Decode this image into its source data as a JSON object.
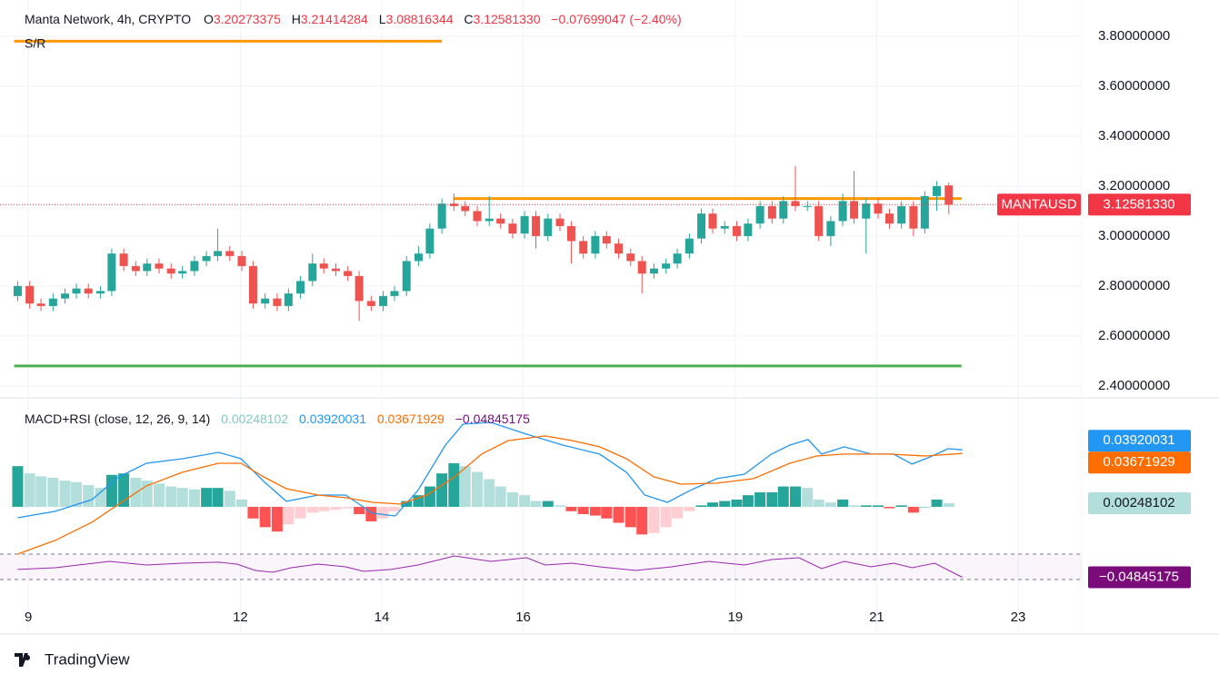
{
  "chart_data": [
    {
      "type": "candlestick",
      "title": "Manta Network, 4h, CRYPTO",
      "ohlc": [
        {
          "key": "O",
          "value": "3.20273375"
        },
        {
          "key": "H",
          "value": "3.21414284"
        },
        {
          "key": "L",
          "value": "3.08816344"
        },
        {
          "key": "C",
          "value": "3.12581330"
        }
      ],
      "change": "−0.07699047 (−2.40%)",
      "symbol": "MANTAUSD",
      "last_label": "3.12581330",
      "sr_label": "S/R",
      "x": [
        8.85,
        9.02,
        9.18,
        9.35,
        9.52,
        9.68,
        9.85,
        10.02,
        10.18,
        10.35,
        10.52,
        10.68,
        10.85,
        11.02,
        11.18,
        11.35,
        11.52,
        11.68,
        11.85,
        12.02,
        12.18,
        12.35,
        12.52,
        12.68,
        12.85,
        13.02,
        13.18,
        13.35,
        13.52,
        13.68,
        13.85,
        14.02,
        14.18,
        14.35,
        14.52,
        14.68,
        14.85,
        15.02,
        15.18,
        15.35,
        15.52,
        15.68,
        15.85,
        16.02,
        16.18,
        16.35,
        16.52,
        16.68,
        16.85,
        17.02,
        17.18,
        17.35,
        17.52,
        17.68,
        17.85,
        18.02,
        18.18,
        18.35,
        18.52,
        18.68,
        18.85,
        19.02,
        19.18,
        19.35,
        19.52,
        19.68,
        19.85,
        20.02,
        20.18,
        20.35,
        20.52,
        20.68,
        20.85,
        21.02,
        21.18,
        21.35,
        21.52,
        21.68,
        21.85,
        22.02
      ],
      "open": [
        2.76,
        2.8,
        2.73,
        2.72,
        2.75,
        2.77,
        2.79,
        2.77,
        2.78,
        2.93,
        2.88,
        2.86,
        2.89,
        2.87,
        2.85,
        2.86,
        2.9,
        2.92,
        2.94,
        2.92,
        2.88,
        2.73,
        2.75,
        2.72,
        2.77,
        2.82,
        2.89,
        2.87,
        2.86,
        2.84,
        2.74,
        2.72,
        2.76,
        2.78,
        2.9,
        2.93,
        3.03,
        3.13,
        3.12,
        3.1,
        3.06,
        3.07,
        3.05,
        3.01,
        3.08,
        3.0,
        3.07,
        3.04,
        2.98,
        2.93,
        3.0,
        2.97,
        2.93,
        2.9,
        2.85,
        2.87,
        2.89,
        2.93,
        2.99,
        3.09,
        3.03,
        3.04,
        3.0,
        3.05,
        3.12,
        3.07,
        3.14,
        3.12,
        3.12,
        3.0,
        3.06,
        3.14,
        3.07,
        3.13,
        3.09,
        3.05,
        3.12,
        3.03,
        3.16,
        3.20273375
      ],
      "high": [
        2.82,
        2.82,
        2.75,
        2.77,
        2.79,
        2.81,
        2.81,
        2.8,
        2.95,
        2.95,
        2.9,
        2.91,
        2.91,
        2.89,
        2.88,
        2.92,
        2.94,
        3.03,
        2.96,
        2.94,
        2.9,
        2.77,
        2.77,
        2.79,
        2.84,
        2.93,
        2.91,
        2.89,
        2.88,
        2.86,
        2.76,
        2.78,
        2.8,
        2.92,
        2.96,
        3.05,
        3.15,
        3.17,
        3.14,
        3.12,
        3.16,
        3.09,
        3.07,
        3.1,
        3.1,
        3.09,
        3.09,
        3.06,
        3.0,
        3.02,
        3.02,
        2.99,
        2.95,
        2.92,
        2.89,
        2.91,
        2.95,
        3.01,
        3.11,
        3.11,
        3.06,
        3.06,
        3.07,
        3.14,
        3.14,
        3.16,
        3.28,
        3.14,
        3.14,
        3.08,
        3.17,
        3.26,
        3.15,
        3.15,
        3.11,
        3.14,
        3.14,
        3.18,
        3.22,
        3.21414284
      ],
      "low": [
        2.74,
        2.71,
        2.7,
        2.7,
        2.73,
        2.75,
        2.75,
        2.75,
        2.76,
        2.86,
        2.84,
        2.84,
        2.85,
        2.83,
        2.83,
        2.84,
        2.88,
        2.9,
        2.9,
        2.86,
        2.71,
        2.71,
        2.7,
        2.7,
        2.75,
        2.8,
        2.85,
        2.84,
        2.82,
        2.66,
        2.7,
        2.7,
        2.74,
        2.76,
        2.88,
        2.91,
        3.01,
        3.1,
        3.08,
        3.04,
        3.04,
        3.03,
        2.99,
        2.99,
        2.95,
        2.98,
        3.02,
        2.89,
        2.91,
        2.91,
        2.95,
        2.91,
        2.88,
        2.77,
        2.83,
        2.85,
        2.87,
        2.91,
        2.97,
        3.01,
        3.01,
        2.98,
        2.98,
        3.03,
        3.05,
        3.05,
        3.1,
        3.1,
        2.98,
        2.96,
        3.04,
        3.05,
        2.93,
        3.07,
        3.03,
        3.03,
        3.0,
        3.01,
        3.1,
        3.08816344
      ],
      "close": [
        2.8,
        2.73,
        2.72,
        2.75,
        2.77,
        2.79,
        2.77,
        2.78,
        2.93,
        2.88,
        2.86,
        2.89,
        2.87,
        2.85,
        2.86,
        2.9,
        2.92,
        2.94,
        2.92,
        2.88,
        2.73,
        2.75,
        2.72,
        2.77,
        2.82,
        2.89,
        2.87,
        2.86,
        2.84,
        2.74,
        2.72,
        2.76,
        2.78,
        2.9,
        2.93,
        3.03,
        3.13,
        3.12,
        3.1,
        3.06,
        3.07,
        3.05,
        3.01,
        3.08,
        3.0,
        3.07,
        3.04,
        2.98,
        2.93,
        3.0,
        2.97,
        2.93,
        2.9,
        2.85,
        2.87,
        2.89,
        2.93,
        2.99,
        3.09,
        3.03,
        3.04,
        3.0,
        3.05,
        3.12,
        3.07,
        3.14,
        3.12,
        3.12,
        3.0,
        3.06,
        3.14,
        3.07,
        3.13,
        3.09,
        3.05,
        3.12,
        3.03,
        3.16,
        3.2,
        3.1258133
      ],
      "up_color": "#26a69a",
      "down_color": "#ef5350",
      "last_color": "#f23645",
      "xlim": [
        8.6,
        23.9
      ],
      "xticks": [
        9,
        12,
        14,
        16,
        19,
        21,
        23
      ],
      "ylim": [
        2.356,
        3.945
      ],
      "yticks": [
        {
          "value": 2.4,
          "label": "2.40000000"
        },
        {
          "value": 2.6,
          "label": "2.60000000"
        },
        {
          "value": 2.8,
          "label": "2.80000000"
        },
        {
          "value": 3.0,
          "label": "3.00000000"
        },
        {
          "value": 3.2,
          "label": "3.20000000"
        },
        {
          "value": 3.4,
          "label": "3.40000000"
        },
        {
          "value": 3.6,
          "label": "3.60000000"
        },
        {
          "value": 3.8,
          "label": "3.80000000"
        }
      ],
      "grid": true,
      "levels": [
        {
          "value": 3.78,
          "start": 8.8,
          "end": 14.85,
          "color": "#ff9800"
        },
        {
          "value": 3.15,
          "start": 15.02,
          "end": 22.2,
          "color": "#ff9800"
        },
        {
          "value": 2.48,
          "start": 8.8,
          "end": 22.2,
          "color": "#4caf50"
        }
      ]
    },
    {
      "type": "macd",
      "title": "MACD+RSI (close, 12, 26, 9, 14)",
      "ylim": [
        -0.0294,
        0.0731
      ],
      "histogram": {
        "values": [
          0.028,
          0.023,
          0.021,
          0.02,
          0.018,
          0.017,
          0.015,
          0.013,
          0.022,
          0.023,
          0.02,
          0.018,
          0.016,
          0.014,
          0.013,
          0.012,
          0.013,
          0.013,
          0.011,
          0.005,
          -0.008,
          -0.014,
          -0.017,
          -0.012,
          -0.008,
          -0.004,
          -0.003,
          -0.002,
          -0.001,
          -0.005,
          -0.01,
          -0.008,
          -0.003,
          0.004,
          0.008,
          0.014,
          0.023,
          0.03,
          0.028,
          0.024,
          0.019,
          0.014,
          0.01,
          0.008,
          0.004,
          0.004,
          0.001,
          -0.003,
          -0.005,
          -0.006,
          -0.008,
          -0.011,
          -0.014,
          -0.019,
          -0.018,
          -0.014,
          -0.008,
          -0.003,
          0.001,
          0.003,
          0.004,
          0.005,
          0.008,
          0.01,
          0.01,
          0.014,
          0.014,
          0.013,
          0.005,
          0.003,
          0.005,
          0.001,
          0.001,
          0.001,
          -0.001,
          0.001,
          -0.004,
          0.0,
          0.005,
          0.00248102
        ],
        "value_label": "0.00248102",
        "colors": {
          "up_strong": "#26a69a",
          "up_weak": "#b2dfdb",
          "down_strong": "#ff5252",
          "down_weak": "#ffcdd2"
        }
      },
      "series": [
        {
          "color": "#2196f3",
          "value_label": "0.03920031",
          "x": [
            8.85,
            9.38,
            9.9,
            10.28,
            10.67,
            11.18,
            11.69,
            12.01,
            12.33,
            12.65,
            13.1,
            13.49,
            13.87,
            14.19,
            14.51,
            14.9,
            15.15,
            15.54,
            16.05,
            16.56,
            17.08,
            17.46,
            17.72,
            18.04,
            18.36,
            18.74,
            19.13,
            19.51,
            19.77,
            20.03,
            20.22,
            20.54,
            20.92,
            21.24,
            21.5,
            21.76,
            22.01,
            22.21
          ],
          "values": [
            -0.0075,
            -0.0031,
            0.005,
            0.0206,
            0.03,
            0.0331,
            0.0375,
            0.0331,
            0.0175,
            0.0038,
            0.0081,
            0.0081,
            -0.0044,
            -0.0063,
            0.0113,
            0.0425,
            0.0569,
            0.0581,
            0.05,
            0.0425,
            0.0363,
            0.0238,
            0.0081,
            0.0031,
            0.0113,
            0.0194,
            0.0225,
            0.0363,
            0.0425,
            0.0463,
            0.0363,
            0.0413,
            0.0363,
            0.0363,
            0.0294,
            0.0344,
            0.04,
            0.03920031
          ]
        },
        {
          "color": "#ff6d00",
          "value_label": "0.03671929",
          "x": [
            8.85,
            9.38,
            9.9,
            10.28,
            10.67,
            11.18,
            11.69,
            12.01,
            12.33,
            12.65,
            13.1,
            13.49,
            13.87,
            14.26,
            14.64,
            15.03,
            15.41,
            15.79,
            16.31,
            16.69,
            17.08,
            17.46,
            17.85,
            18.23,
            18.74,
            19.26,
            19.77,
            20.15,
            20.54,
            21.18,
            21.69,
            22.21
          ],
          "values": [
            -0.0325,
            -0.0231,
            -0.0106,
            0.0019,
            0.0144,
            0.0238,
            0.03,
            0.03,
            0.0206,
            0.0125,
            0.0081,
            0.0063,
            0.0031,
            0.0019,
            0.0081,
            0.0206,
            0.0363,
            0.0456,
            0.0488,
            0.0456,
            0.0413,
            0.0331,
            0.0206,
            0.0156,
            0.0163,
            0.0194,
            0.03,
            0.035,
            0.0363,
            0.0363,
            0.035,
            0.03671929
          ]
        },
        {
          "color": "#9c27b0",
          "label_color": "#7b0a7b",
          "value_label": "−0.04845175",
          "x": [
            8.85,
            9.38,
            10.15,
            10.67,
            11.18,
            11.69,
            11.95,
            12.21,
            12.46,
            12.72,
            13.1,
            13.49,
            13.74,
            14.13,
            14.51,
            15.03,
            15.54,
            16.05,
            16.31,
            16.69,
            17.08,
            17.59,
            18.1,
            18.62,
            19.13,
            19.51,
            19.9,
            20.22,
            20.54,
            20.92,
            21.24,
            21.5,
            21.82,
            22.21
          ],
          "values": [
            -0.0431,
            -0.0419,
            -0.0375,
            -0.04,
            -0.0388,
            -0.0381,
            -0.0394,
            -0.0438,
            -0.045,
            -0.0419,
            -0.0394,
            -0.0413,
            -0.0444,
            -0.0431,
            -0.04,
            -0.0338,
            -0.0375,
            -0.035,
            -0.04,
            -0.0388,
            -0.0413,
            -0.0438,
            -0.0413,
            -0.0375,
            -0.04,
            -0.0363,
            -0.035,
            -0.0425,
            -0.0375,
            -0.0413,
            -0.0388,
            -0.0419,
            -0.0388,
            -0.04845175
          ]
        }
      ]
    }
  ],
  "footer": {
    "brand": "TradingView"
  }
}
